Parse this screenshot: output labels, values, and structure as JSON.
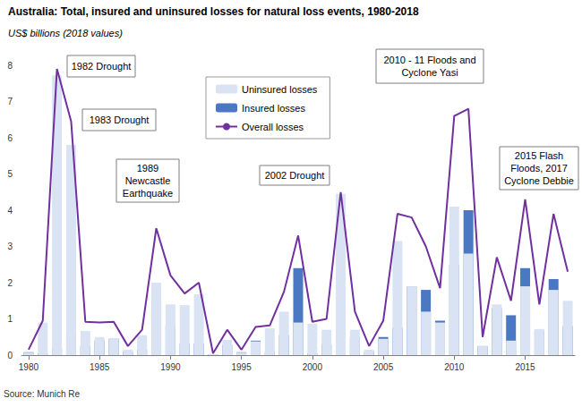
{
  "chart_data": {
    "type": "bar",
    "title": "Australia: Total, insured and uninsured losses for natural loss events, 1980-2018",
    "subtitle": "US$ billions (2018 values)",
    "source": "Source: Munich Re",
    "annotations": [
      "1982 Drought",
      "1983 Drought",
      "1989\nNewcastle\nEarthquake",
      "2002 Drought",
      "2010 - 11 Floods and\nCyclone Yasi",
      "2015 Flash\nFloods, 2017\nCyclone Debbie"
    ],
    "x": [
      1980,
      1981,
      1982,
      1983,
      1984,
      1985,
      1986,
      1987,
      1988,
      1989,
      1990,
      1991,
      1992,
      1993,
      1994,
      1995,
      1996,
      1997,
      1998,
      1999,
      2000,
      2001,
      2002,
      2003,
      2004,
      2005,
      2006,
      2007,
      2008,
      2009,
      2010,
      2011,
      2012,
      2013,
      2014,
      2015,
      2016,
      2017,
      2018
    ],
    "xlim": [
      1979.5,
      2018.5
    ],
    "xticks": [
      1980,
      1985,
      1990,
      1995,
      2000,
      2005,
      2010,
      2015
    ],
    "ylim": [
      0,
      8
    ],
    "yticks": [
      0,
      1,
      2,
      3,
      4,
      5,
      6,
      7,
      8
    ],
    "stacked": true,
    "grid": false,
    "legend": "top",
    "series": [
      {
        "name": "Uninsured losses",
        "type": "bar",
        "color": "#d9e3f3",
        "values": [
          0.07,
          0.9,
          7.72,
          5.8,
          0.67,
          0.5,
          0.47,
          0.15,
          0.55,
          2.0,
          1.4,
          1.38,
          1.68,
          0.03,
          0.42,
          0.07,
          0.38,
          0.74,
          1.2,
          0.9,
          0.87,
          0.7,
          4.45,
          0.7,
          0.15,
          0.45,
          3.15,
          1.9,
          1.2,
          0.9,
          4.1,
          2.8,
          0.25,
          1.4,
          0.4,
          1.9,
          0.72,
          1.8,
          1.5
        ]
      },
      {
        "name": "Insured losses",
        "type": "bar",
        "color": "#4a78c2",
        "values": [
          0.08,
          0.05,
          0.18,
          0.65,
          0.25,
          0.4,
          0.45,
          0.1,
          0.15,
          1.5,
          0.8,
          0.32,
          0.32,
          0.02,
          0.28,
          0.08,
          0.4,
          0.08,
          0.55,
          2.4,
          0.05,
          0.3,
          0.05,
          0.5,
          0.1,
          0.5,
          0.75,
          1.9,
          1.8,
          0.95,
          2.5,
          4.0,
          0.25,
          1.3,
          1.1,
          2.4,
          0.68,
          2.1,
          0.8
        ]
      },
      {
        "name": "Overall losses",
        "type": "line",
        "color": "#7030a0",
        "values": [
          0.15,
          0.95,
          7.9,
          6.45,
          0.92,
          0.9,
          0.92,
          0.25,
          0.7,
          3.5,
          2.2,
          1.7,
          2.0,
          0.05,
          0.7,
          0.15,
          0.78,
          0.82,
          1.75,
          3.3,
          0.92,
          1.0,
          4.5,
          1.2,
          0.25,
          0.95,
          3.9,
          3.8,
          3.0,
          1.85,
          6.6,
          6.8,
          0.5,
          2.7,
          1.5,
          4.3,
          1.4,
          3.9,
          2.3
        ]
      }
    ]
  }
}
